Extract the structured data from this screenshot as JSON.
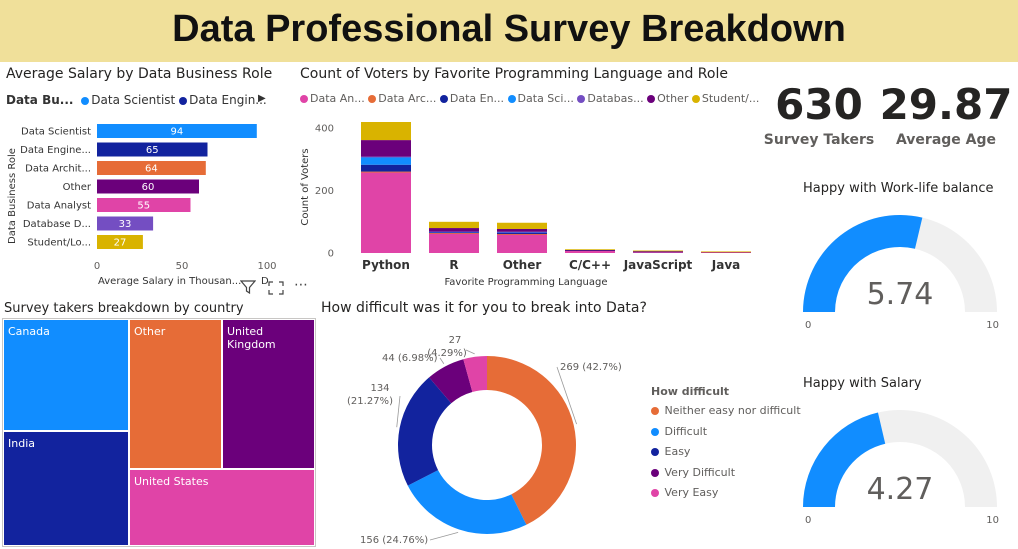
{
  "header": {
    "title": "Data Professional Survey Breakdown"
  },
  "colors": {
    "data_scientist": "#118dff",
    "data_engineer": "#12239e",
    "data_architect": "#e66c37",
    "other": "#6b007b",
    "data_analyst": "#e044a7",
    "database_dev": "#744ec2",
    "student": "#d9b300",
    "gauge_fill": "#118dff",
    "gauge_track": "#f0f0f0"
  },
  "salary_chart": {
    "title": "Average Salary by Data Business Role",
    "legend_title": "Data Bu...",
    "legend_items": [
      {
        "label": "Data Scientist",
        "color": "#118dff"
      },
      {
        "label": "Data Engin...",
        "color": "#12239e"
      }
    ],
    "legend_more_icon": "chevron-right-icon"
  },
  "voters_chart": {
    "title": "Count of Voters by Favorite Programming Language and Role",
    "legend_items": [
      {
        "label": "Data An...",
        "color": "#e044a7"
      },
      {
        "label": "Data Arc...",
        "color": "#e66c37"
      },
      {
        "label": "Data En...",
        "color": "#12239e"
      },
      {
        "label": "Data Sci...",
        "color": "#118dff"
      },
      {
        "label": "Databas...",
        "color": "#744ec2"
      },
      {
        "label": "Other",
        "color": "#6b007b"
      },
      {
        "label": "Student/...",
        "color": "#d9b300"
      }
    ]
  },
  "chart_data": [
    {
      "type": "bar",
      "orientation": "horizontal",
      "title": "Average Salary by Data Business Role",
      "xlabel": "Average Salary in Thousan...",
      "ylabel": "Data Business Role",
      "categories": [
        "Data Scientist",
        "Data Engine...",
        "Data Archit...",
        "Other",
        "Data Analyst",
        "Database D...",
        "Student/Lo..."
      ],
      "values": [
        94,
        65,
        64,
        60,
        55,
        33,
        27
      ],
      "data_labels": [
        "94",
        "65",
        "64",
        "60",
        "55",
        "33",
        "27"
      ],
      "bar_colors": [
        "#118dff",
        "#12239e",
        "#e66c37",
        "#6b007b",
        "#e044a7",
        "#744ec2",
        "#d9b300"
      ],
      "xlim": [
        0,
        100
      ],
      "x_ticks": [
        "0",
        "50",
        "100"
      ],
      "legend": "top-left"
    },
    {
      "type": "bar",
      "stacked": true,
      "title": "Count of Voters by Favorite Programming Language and Role",
      "xlabel": "Favorite Programming Language",
      "ylabel": "Count of Voters",
      "categories": [
        "Python",
        "R",
        "Other",
        "C/C++",
        "JavaScript",
        "Java"
      ],
      "ylim": [
        0,
        420
      ],
      "y_ticks": [
        "0",
        "200",
        "400"
      ],
      "legend": "top",
      "series": [
        {
          "name": "Data An...",
          "color": "#e044a7",
          "values": [
            258,
            63,
            60,
            8,
            4,
            3
          ]
        },
        {
          "name": "Data Arc...",
          "color": "#e66c37",
          "values": [
            3,
            1,
            1,
            0,
            0,
            0
          ]
        },
        {
          "name": "Data En...",
          "color": "#12239e",
          "values": [
            22,
            3,
            5,
            1,
            1,
            0
          ]
        },
        {
          "name": "Data Sci...",
          "color": "#118dff",
          "values": [
            24,
            1,
            1,
            0,
            0,
            0
          ]
        },
        {
          "name": "Databas...",
          "color": "#744ec2",
          "values": [
            2,
            1,
            1,
            0,
            0,
            0
          ]
        },
        {
          "name": "Other",
          "color": "#6b007b",
          "values": [
            53,
            11,
            9,
            1,
            1,
            1
          ]
        },
        {
          "name": "Student/...",
          "color": "#d9b300",
          "values": [
            58,
            20,
            20,
            2,
            2,
            1
          ]
        }
      ]
    },
    {
      "type": "treemap",
      "title": "Survey takers breakdown by country",
      "items": [
        {
          "label": "Canada",
          "color": "#118dff"
        },
        {
          "label": "India",
          "color": "#12239e"
        },
        {
          "label": "Other",
          "color": "#e66c37"
        },
        {
          "label": "United Kingdom",
          "color": "#6b007b"
        },
        {
          "label": "United States",
          "color": "#e044a7"
        }
      ]
    },
    {
      "type": "pie",
      "donut": true,
      "title": "How difficult was it for you to break into Data?",
      "legend_title": "How difficult",
      "legend": "right",
      "slices": [
        {
          "label": "Neither easy nor difficult",
          "value": 269,
          "data_label": "269 (42.7%)",
          "color": "#e66c37"
        },
        {
          "label": "Difficult",
          "value": 156,
          "data_label": "156 (24.76%)",
          "color": "#118dff"
        },
        {
          "label": "Easy",
          "value": 134,
          "data_label": "134 (21.27%)",
          "color": "#12239e"
        },
        {
          "label": "Very Difficult",
          "value": 44,
          "data_label": "44 (6.98%)",
          "color": "#6b007b"
        },
        {
          "label": "Very Easy",
          "value": 27,
          "data_label": "27 (4.29%)",
          "color": "#e044a7"
        }
      ]
    },
    {
      "type": "gauge",
      "title": "Happy with Work-life balance",
      "value": 5.74,
      "value_label": "5.74",
      "min": 0,
      "max": 10,
      "min_label": "0",
      "max_label": "10"
    },
    {
      "type": "gauge",
      "title": "Happy with Salary",
      "value": 4.27,
      "value_label": "4.27",
      "min": 0,
      "max": 10,
      "min_label": "0",
      "max_label": "10"
    }
  ],
  "kpis": {
    "survey_takers": {
      "value": "630",
      "label": "Survey Takers"
    },
    "average_age": {
      "value": "29.87",
      "label": "Average Age"
    }
  },
  "toolbar_icons": [
    "filter-icon",
    "focus-mode-icon",
    "more-options-icon"
  ],
  "salary_axis_suffix": "D"
}
